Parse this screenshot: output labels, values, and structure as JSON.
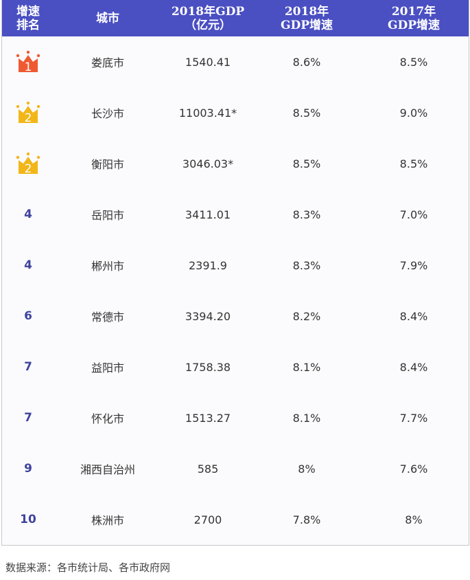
{
  "colors": {
    "header_bg": "#4a4fc2",
    "rank_text": "#3f439e",
    "crown_gold": "#f2b619",
    "crown_red": "#ef5a32"
  },
  "header": [
    "增速\n排名",
    "城市",
    "2018年GDP\n（亿元）",
    "2018年\nGDP增速",
    "2017年\nGDP增速"
  ],
  "rows": [
    {
      "rank": "1",
      "crown": "red-crown-icon",
      "city": "娄底市",
      "gdp": "1540.41",
      "g2018": "8.6%",
      "g2017": "8.5%"
    },
    {
      "rank": "2",
      "crown": "gold-crown-icon",
      "city": "长沙市",
      "gdp": "11003.41*",
      "g2018": "8.5%",
      "g2017": "9.0%"
    },
    {
      "rank": "2",
      "crown": "gold-crown-icon",
      "city": "衡阳市",
      "gdp": "3046.03*",
      "g2018": "8.5%",
      "g2017": "8.5%"
    },
    {
      "rank": "4",
      "city": "岳阳市",
      "gdp": "3411.01",
      "g2018": "8.3%",
      "g2017": "7.0%"
    },
    {
      "rank": "4",
      "city": "郴州市",
      "gdp": "2391.9",
      "g2018": "8.3%",
      "g2017": "7.9%"
    },
    {
      "rank": "6",
      "city": "常德市",
      "gdp": "3394.20",
      "g2018": "8.2%",
      "g2017": "8.4%"
    },
    {
      "rank": "7",
      "city": "益阳市",
      "gdp": "1758.38",
      "g2018": "8.1%",
      "g2017": "8.4%"
    },
    {
      "rank": "7",
      "city": "怀化市",
      "gdp": "1513.27",
      "g2018": "8.1%",
      "g2017": "7.7%"
    },
    {
      "rank": "9",
      "city": "湘西自治州",
      "gdp": "585",
      "g2018": "8%",
      "g2017": "7.6%"
    },
    {
      "rank": "10",
      "city": "株洲市",
      "gdp": "2700",
      "g2018": "7.8%",
      "g2017": "8%"
    }
  ],
  "footer": "数据来源：各市统计局、各市政府网"
}
